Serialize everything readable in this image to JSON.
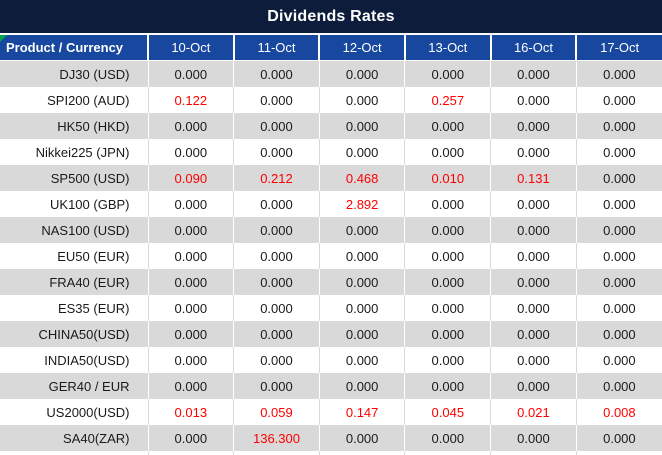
{
  "table": {
    "title": "Dividends Rates",
    "columns": {
      "product_header": "Product / Currency",
      "dates": [
        "10-Oct",
        "11-Oct",
        "12-Oct",
        "13-Oct",
        "16-Oct",
        "17-Oct"
      ]
    },
    "rows": [
      {
        "product": "DJ30 (USD)",
        "values": [
          "0.000",
          "0.000",
          "0.000",
          "0.000",
          "0.000",
          "0.000"
        ],
        "red": [
          false,
          false,
          false,
          false,
          false,
          false
        ]
      },
      {
        "product": "SPI200 (AUD)",
        "values": [
          "0.122",
          "0.000",
          "0.000",
          "0.257",
          "0.000",
          "0.000"
        ],
        "red": [
          true,
          false,
          false,
          true,
          false,
          false
        ]
      },
      {
        "product": "HK50 (HKD)",
        "values": [
          "0.000",
          "0.000",
          "0.000",
          "0.000",
          "0.000",
          "0.000"
        ],
        "red": [
          false,
          false,
          false,
          false,
          false,
          false
        ]
      },
      {
        "product": "Nikkei225 (JPN)",
        "values": [
          "0.000",
          "0.000",
          "0.000",
          "0.000",
          "0.000",
          "0.000"
        ],
        "red": [
          false,
          false,
          false,
          false,
          false,
          false
        ]
      },
      {
        "product": "SP500 (USD)",
        "values": [
          "0.090",
          "0.212",
          "0.468",
          "0.010",
          "0.131",
          "0.000"
        ],
        "red": [
          true,
          true,
          true,
          true,
          true,
          false
        ]
      },
      {
        "product": "UK100 (GBP)",
        "values": [
          "0.000",
          "0.000",
          "2.892",
          "0.000",
          "0.000",
          "0.000"
        ],
        "red": [
          false,
          false,
          true,
          false,
          false,
          false
        ]
      },
      {
        "product": "NAS100 (USD)",
        "values": [
          "0.000",
          "0.000",
          "0.000",
          "0.000",
          "0.000",
          "0.000"
        ],
        "red": [
          false,
          false,
          false,
          false,
          false,
          false
        ]
      },
      {
        "product": "EU50 (EUR)",
        "values": [
          "0.000",
          "0.000",
          "0.000",
          "0.000",
          "0.000",
          "0.000"
        ],
        "red": [
          false,
          false,
          false,
          false,
          false,
          false
        ]
      },
      {
        "product": "FRA40 (EUR)",
        "values": [
          "0.000",
          "0.000",
          "0.000",
          "0.000",
          "0.000",
          "0.000"
        ],
        "red": [
          false,
          false,
          false,
          false,
          false,
          false
        ]
      },
      {
        "product": "ES35 (EUR)",
        "values": [
          "0.000",
          "0.000",
          "0.000",
          "0.000",
          "0.000",
          "0.000"
        ],
        "red": [
          false,
          false,
          false,
          false,
          false,
          false
        ]
      },
      {
        "product": "CHINA50(USD)",
        "values": [
          "0.000",
          "0.000",
          "0.000",
          "0.000",
          "0.000",
          "0.000"
        ],
        "red": [
          false,
          false,
          false,
          false,
          false,
          false
        ]
      },
      {
        "product": "INDIA50(USD)",
        "values": [
          "0.000",
          "0.000",
          "0.000",
          "0.000",
          "0.000",
          "0.000"
        ],
        "red": [
          false,
          false,
          false,
          false,
          false,
          false
        ]
      },
      {
        "product": "GER40 / EUR",
        "values": [
          "0.000",
          "0.000",
          "0.000",
          "0.000",
          "0.000",
          "0.000"
        ],
        "red": [
          false,
          false,
          false,
          false,
          false,
          false
        ]
      },
      {
        "product": "US2000(USD)",
        "values": [
          "0.013",
          "0.059",
          "0.147",
          "0.045",
          "0.021",
          "0.008"
        ],
        "red": [
          true,
          true,
          true,
          true,
          true,
          true
        ]
      },
      {
        "product": "SA40(ZAR)",
        "values": [
          "0.000",
          "136.300",
          "0.000",
          "0.000",
          "0.000",
          "0.000"
        ],
        "red": [
          false,
          true,
          false,
          false,
          false,
          false
        ]
      }
    ]
  },
  "colors": {
    "title_bg": "#0D1C3A",
    "header_bg": "#17479E",
    "row_alt_bg": "#D9D9D9",
    "highlight_text": "#FF0000",
    "corner_marker": "#00A550"
  }
}
